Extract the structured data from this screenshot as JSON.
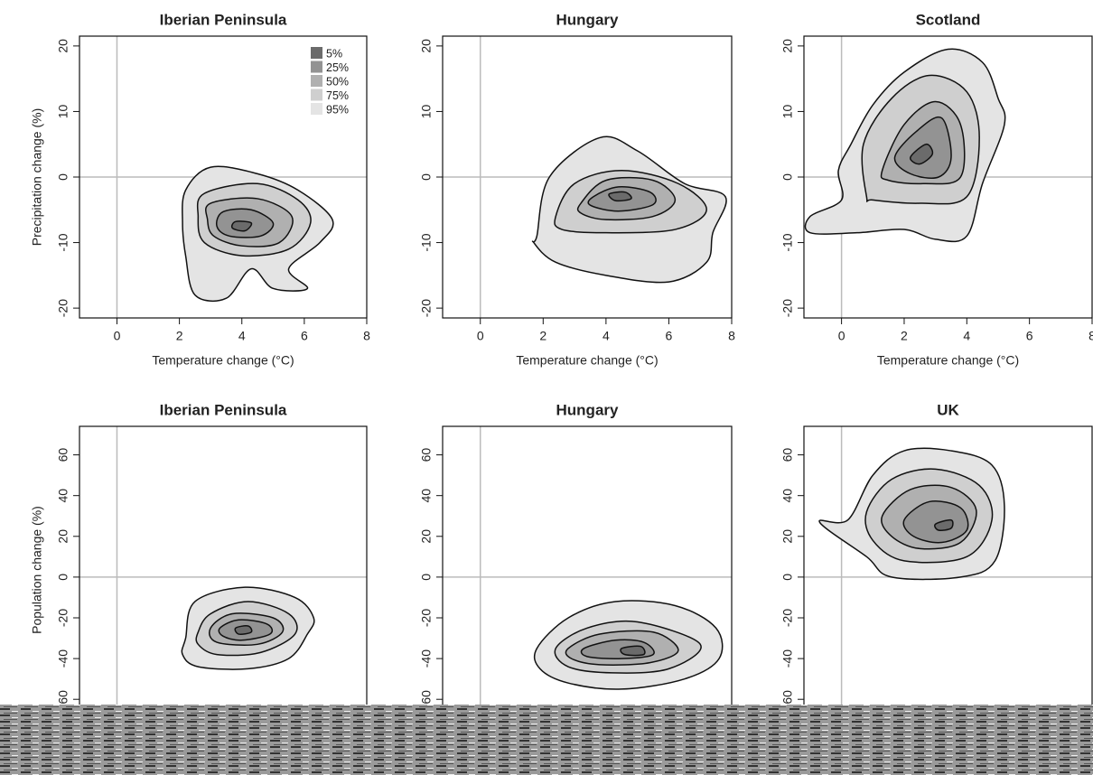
{
  "chart_data": [
    {
      "type": "contour",
      "title": "Iberian Peninsula",
      "xlabel": "Temperature change (°C)",
      "ylabel": "Precipitation change (%)",
      "xlim": [
        -1.2,
        8
      ],
      "ylim": [
        -21.5,
        21.5
      ],
      "xticks": [
        0,
        2,
        4,
        6,
        8
      ],
      "yticks": [
        -20,
        -10,
        0,
        10,
        20
      ],
      "zero_lines": true,
      "legend": "upper right",
      "series": [
        {
          "name": "5%",
          "color": "#6b6b6b",
          "x": [
            3.8,
            4.3,
            4.1,
            3.7
          ],
          "y": [
            -6.8,
            -7,
            -8.2,
            -7.8
          ]
        },
        {
          "name": "25%",
          "color": "#939393",
          "x": [
            3.4,
            4.3,
            5,
            4.6,
            3.6,
            3.2
          ],
          "y": [
            -5.3,
            -5,
            -7,
            -9,
            -9,
            -7.5
          ]
        },
        {
          "name": "50%",
          "color": "#b0b0b0",
          "x": [
            3,
            4.5,
            5.6,
            5.2,
            4,
            3.1,
            2.9
          ],
          "y": [
            -4,
            -3.3,
            -6,
            -10,
            -10.5,
            -9,
            -6.5
          ]
        },
        {
          "name": "75%",
          "color": "#cfcfcf",
          "x": [
            2.8,
            4.5,
            5.8,
            6.2,
            5.5,
            4,
            2.8,
            2.6
          ],
          "y": [
            -2.5,
            -1,
            -3.5,
            -7,
            -11,
            -12,
            -10,
            -6
          ]
        },
        {
          "name": "95%",
          "color": "#e4e4e4",
          "x": [
            2.2,
            3,
            4.5,
            5.8,
            6.9,
            6.5,
            5.5,
            6.1,
            5,
            4.3,
            3.5,
            2.5,
            2.2,
            2.1
          ],
          "y": [
            -2,
            1.5,
            0.5,
            -2,
            -6.5,
            -10,
            -14,
            -17,
            -17,
            -14,
            -18.5,
            -18,
            -12,
            -7
          ]
        }
      ]
    },
    {
      "type": "contour",
      "title": "Hungary",
      "xlabel": "Temperature change (°C)",
      "xlim": [
        -1.2,
        8
      ],
      "ylim": [
        -21.5,
        21.5
      ],
      "xticks": [
        0,
        2,
        4,
        6,
        8
      ],
      "yticks": [
        -20,
        -10,
        0,
        10,
        20
      ],
      "zero_lines": true,
      "series": [
        {
          "color": "#6b6b6b",
          "x": [
            4.1,
            4.6,
            4.8,
            4.3
          ],
          "y": [
            -2.6,
            -2.3,
            -3.3,
            -3.6
          ]
        },
        {
          "color": "#939393",
          "x": [
            3.6,
            4.4,
            5.4,
            5.5,
            4.4,
            3.5
          ],
          "y": [
            -3,
            -1.5,
            -2.3,
            -4.2,
            -5.2,
            -4.3
          ]
        },
        {
          "color": "#b0b0b0",
          "x": [
            3.2,
            4,
            5.5,
            6.2,
            5.5,
            4,
            3.2
          ],
          "y": [
            -4,
            -0.5,
            -0.5,
            -3.5,
            -6,
            -6.5,
            -5.5
          ]
        },
        {
          "color": "#cfcfcf",
          "x": [
            2.4,
            3,
            4.5,
            6.3,
            7.2,
            6.2,
            4,
            2.6
          ],
          "y": [
            -6,
            -1,
            1,
            -1,
            -5,
            -8,
            -8.5,
            -8
          ]
        },
        {
          "color": "#e4e4e4",
          "x": [
            1.8,
            2.2,
            3.8,
            5,
            6.5,
            7.8,
            7.4,
            7.2,
            6,
            4,
            2.4,
            1.7
          ],
          "y": [
            -9,
            0,
            6,
            4,
            -1,
            -3,
            -8.5,
            -13,
            -16,
            -15,
            -13,
            -10
          ]
        }
      ]
    },
    {
      "type": "contour",
      "title": "Scotland",
      "xlabel": "Temperature change (°C)",
      "xlim": [
        -1.2,
        8
      ],
      "ylim": [
        -21.5,
        21.5
      ],
      "xticks": [
        0,
        2,
        4,
        6,
        8
      ],
      "yticks": [
        -20,
        -10,
        0,
        10,
        20
      ],
      "zero_lines": true,
      "series": [
        {
          "color": "#6b6b6b",
          "x": [
            2.2,
            2.7,
            2.9,
            2.5
          ],
          "y": [
            3,
            5,
            3.5,
            2
          ]
        },
        {
          "color": "#939393",
          "x": [
            1.7,
            2.4,
            3.2,
            3.5,
            3.1,
            2.2
          ],
          "y": [
            3,
            7,
            9,
            3,
            0,
            0.5
          ]
        },
        {
          "color": "#b0b0b0",
          "x": [
            1.3,
            2,
            3,
            3.8,
            3.8,
            2.6,
            1.5
          ],
          "y": [
            1,
            8,
            11.5,
            8,
            0,
            -1,
            -0.5
          ]
        },
        {
          "color": "#cfcfcf",
          "x": [
            0.8,
            0.7,
            1.6,
            2.8,
            4,
            4.4,
            4,
            2.5,
            1
          ],
          "y": [
            -3,
            5,
            12,
            15.5,
            13,
            6,
            -3,
            -4,
            -3.5
          ]
        },
        {
          "color": "#e4e4e4",
          "x": [
            -1,
            0,
            -0.1,
            0.3,
            1,
            2,
            3.4,
            4.5,
            5,
            5.2,
            4.5,
            4,
            3,
            2,
            0.5,
            -1
          ],
          "y": [
            -6,
            -3.5,
            1,
            5,
            11,
            16,
            19.5,
            17.5,
            12,
            8,
            -1,
            -9,
            -9.5,
            -8,
            -8.5,
            -8.5
          ]
        }
      ]
    },
    {
      "type": "contour",
      "title": "Iberian Peninsula",
      "ylabel": "Population change (%)",
      "xlim": [
        -1.2,
        8
      ],
      "ylim": [
        -67,
        74
      ],
      "yticks": [
        -60,
        -40,
        -20,
        0,
        20,
        40,
        60
      ],
      "zero_lines": true,
      "series": [
        {
          "color": "#6b6b6b",
          "x": [
            3.8,
            4.2,
            4.3,
            3.9
          ],
          "y": [
            -25,
            -24,
            -27,
            -28
          ]
        },
        {
          "color": "#939393",
          "x": [
            3.3,
            3.9,
            4.8,
            4.9,
            4,
            3.4
          ],
          "y": [
            -25,
            -21,
            -23,
            -28,
            -31,
            -29
          ]
        },
        {
          "color": "#b0b0b0",
          "x": [
            3,
            3.7,
            5,
            5.3,
            4.5,
            3.2
          ],
          "y": [
            -25,
            -18,
            -20,
            -27,
            -33,
            -32
          ]
        },
        {
          "color": "#cfcfcf",
          "x": [
            2.6,
            3,
            4.2,
            5.5,
            5.7,
            4.6,
            3.2,
            2.6
          ],
          "y": [
            -27,
            -18,
            -12,
            -18,
            -28,
            -37,
            -38,
            -33
          ]
        },
        {
          "color": "#e4e4e4",
          "x": [
            2.2,
            2.5,
            4.1,
            5.7,
            6.3,
            6.1,
            5.5,
            4.2,
            2.6,
            2.1
          ],
          "y": [
            -30,
            -12,
            -5,
            -10,
            -20,
            -28,
            -40,
            -45,
            -44,
            -38
          ]
        }
      ]
    },
    {
      "type": "contour",
      "title": "Hungary",
      "xlim": [
        -1.2,
        8
      ],
      "ylim": [
        -67,
        74
      ],
      "yticks": [
        -60,
        -40,
        -20,
        0,
        20,
        40,
        60
      ],
      "zero_lines": true,
      "series": [
        {
          "color": "#6b6b6b",
          "x": [
            4.5,
            5.1,
            5.2,
            4.6
          ],
          "y": [
            -35,
            -34,
            -38,
            -38
          ]
        },
        {
          "color": "#939393",
          "x": [
            3.3,
            4.3,
            5.2,
            5.5,
            4.5,
            3.4
          ],
          "y": [
            -35,
            -31,
            -32,
            -38,
            -40,
            -39
          ]
        },
        {
          "color": "#b0b0b0",
          "x": [
            2.8,
            3.8,
            5.5,
            6.3,
            5.4,
            3.8,
            2.9
          ],
          "y": [
            -35,
            -28,
            -27,
            -36,
            -42,
            -43,
            -40
          ]
        },
        {
          "color": "#cfcfcf",
          "x": [
            2.4,
            3.4,
            5,
            7,
            6,
            4.2,
            2.8
          ],
          "y": [
            -35,
            -25,
            -22,
            -33,
            -45,
            -47,
            -44
          ]
        },
        {
          "color": "#e4e4e4",
          "x": [
            1.8,
            2.8,
            4.3,
            6.2,
            7.5,
            7.6,
            6.5,
            4.5,
            2.8,
            1.9
          ],
          "y": [
            -35,
            -20,
            -12,
            -14,
            -25,
            -40,
            -50,
            -55,
            -52,
            -45
          ]
        }
      ]
    },
    {
      "type": "contour",
      "title": "UK",
      "xlim": [
        -1.2,
        8
      ],
      "ylim": [
        -67,
        74
      ],
      "yticks": [
        -60,
        -40,
        -20,
        0,
        20,
        40,
        60
      ],
      "zero_lines": true,
      "series": [
        {
          "color": "#6b6b6b",
          "x": [
            3,
            3.5,
            3.5,
            3.1
          ],
          "y": [
            26,
            28,
            24,
            23
          ]
        },
        {
          "color": "#939393",
          "x": [
            2,
            2.8,
            3.8,
            4,
            3.2,
            2.3
          ],
          "y": [
            28,
            37,
            34,
            23,
            17,
            20
          ]
        },
        {
          "color": "#b0b0b0",
          "x": [
            1.3,
            2.2,
            3.5,
            4.3,
            3.8,
            2.5,
            1.6
          ],
          "y": [
            30,
            43,
            44,
            33,
            17,
            14,
            20
          ]
        },
        {
          "color": "#cfcfcf",
          "x": [
            0.8,
            1.6,
            3,
            4.4,
            4.8,
            4,
            2,
            1
          ],
          "y": [
            32,
            48,
            53,
            45,
            28,
            10,
            8,
            18
          ]
        },
        {
          "color": "#e4e4e4",
          "x": [
            0.2,
            1,
            2,
            3.5,
            4.8,
            5.2,
            4.9,
            3.8,
            1.6,
            0.8,
            -0.7
          ],
          "y": [
            28,
            50,
            62,
            62,
            55,
            35,
            8,
            0,
            0,
            10,
            27
          ]
        }
      ]
    }
  ]
}
